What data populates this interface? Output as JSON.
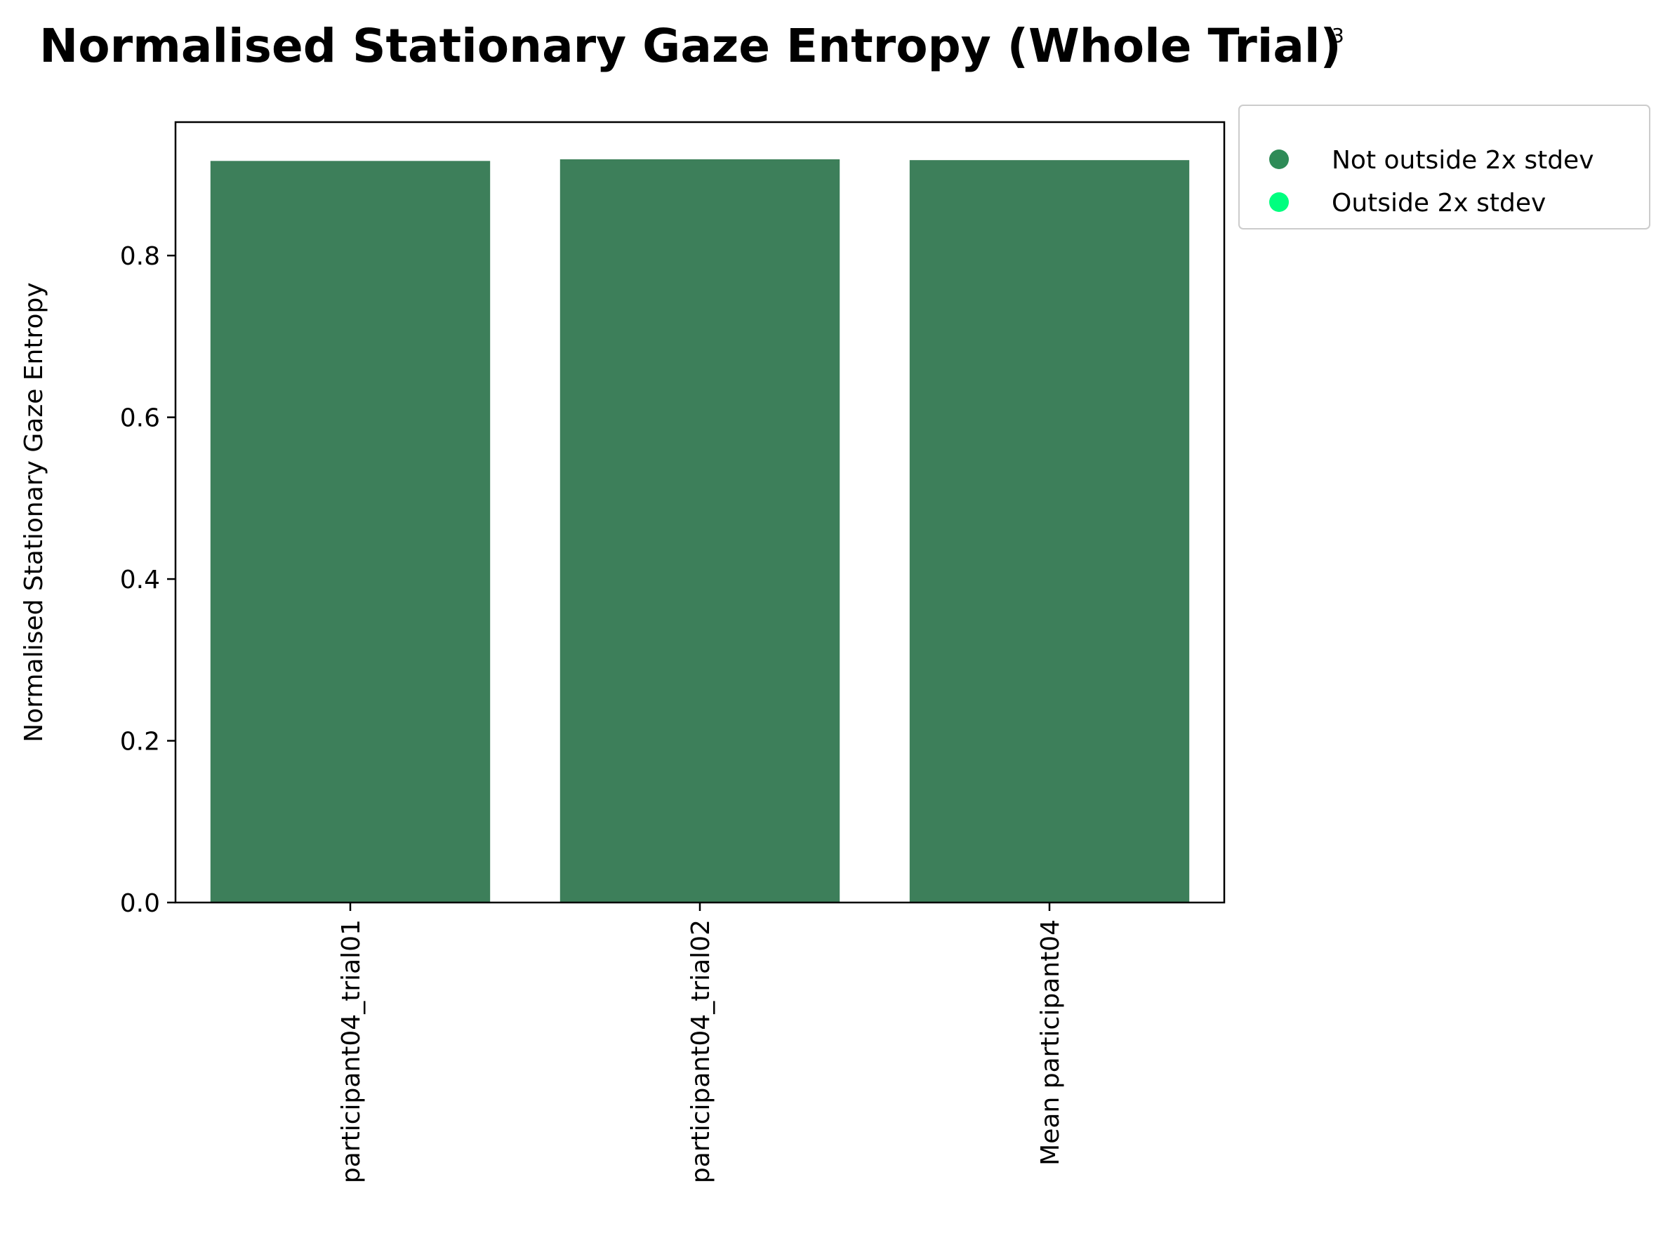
{
  "chart_data": {
    "type": "bar",
    "title": "Normalised Stationary Gaze Entropy (Whole Trial)",
    "title_note": "3",
    "xlabel": "",
    "ylabel": "Normalised Stationary Gaze Entropy",
    "categories": [
      "participant04_trial01",
      "participant04_trial02",
      "Mean participant04"
    ],
    "values": [
      0.917,
      0.919,
      0.918
    ],
    "status": [
      "Not outside 2x stdev",
      "Not outside 2x stdev",
      "Not outside 2x stdev"
    ],
    "ylim": [
      0,
      0.965
    ],
    "yticks": [
      0.0,
      0.2,
      0.4,
      0.6,
      0.8
    ],
    "ytick_labels": [
      "0.0",
      "0.2",
      "0.4",
      "0.6",
      "0.8"
    ],
    "grid": false,
    "legend_position": "outside-top-right",
    "legend": [
      {
        "label": "Not outside 2x stdev",
        "color": "#2e8b57"
      },
      {
        "label": "Outside 2x stdev",
        "color": "#00ff7f"
      }
    ],
    "bar_color": "#3d7f5a"
  }
}
